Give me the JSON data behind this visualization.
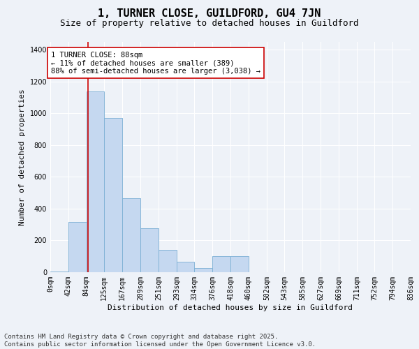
{
  "title": "1, TURNER CLOSE, GUILDFORD, GU4 7JN",
  "subtitle": "Size of property relative to detached houses in Guildford",
  "xlabel": "Distribution of detached houses by size in Guildford",
  "ylabel": "Number of detached properties",
  "footer": "Contains HM Land Registry data © Crown copyright and database right 2025.\nContains public sector information licensed under the Open Government Licence v3.0.",
  "bin_labels": [
    "0sqm",
    "42sqm",
    "84sqm",
    "125sqm",
    "167sqm",
    "209sqm",
    "251sqm",
    "293sqm",
    "334sqm",
    "376sqm",
    "418sqm",
    "460sqm",
    "502sqm",
    "543sqm",
    "585sqm",
    "627sqm",
    "669sqm",
    "711sqm",
    "752sqm",
    "794sqm",
    "836sqm"
  ],
  "bin_edges": [
    0,
    42,
    84,
    125,
    167,
    209,
    251,
    293,
    334,
    376,
    418,
    460,
    502,
    543,
    585,
    627,
    669,
    711,
    752,
    794,
    836
  ],
  "bar_values": [
    5,
    315,
    1140,
    970,
    465,
    275,
    140,
    65,
    25,
    100,
    100,
    0,
    0,
    0,
    0,
    0,
    0,
    0,
    0,
    0
  ],
  "ylim": [
    0,
    1450
  ],
  "yticks": [
    0,
    200,
    400,
    600,
    800,
    1000,
    1200,
    1400
  ],
  "bar_color": "#c5d8f0",
  "bar_edge_color": "#7bafd4",
  "annotation_text": "1 TURNER CLOSE: 88sqm\n← 11% of detached houses are smaller (389)\n88% of semi-detached houses are larger (3,038) →",
  "vline_x": 88,
  "vline_color": "#cc0000",
  "annotation_box_edge": "#cc0000",
  "bg_color": "#eef2f8",
  "grid_color": "#ffffff",
  "title_fontsize": 11,
  "subtitle_fontsize": 9,
  "axis_label_fontsize": 8,
  "tick_fontsize": 7,
  "annotation_fontsize": 7.5,
  "footer_fontsize": 6.5
}
